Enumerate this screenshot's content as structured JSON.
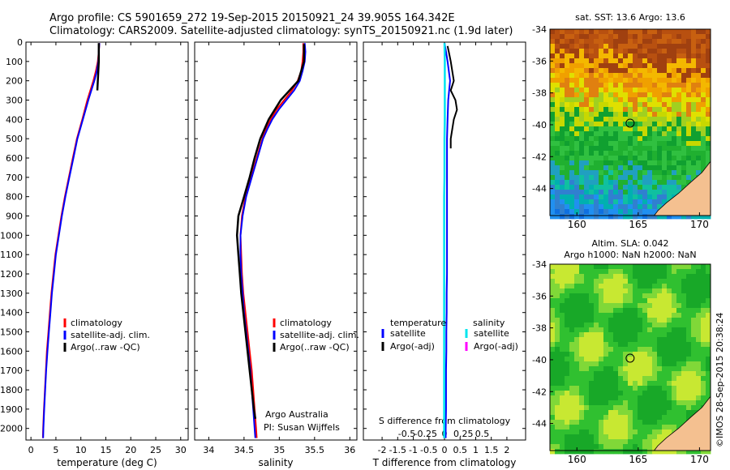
{
  "title_line1": "Argo profile: CS 5901659_272 19-Sep-2015 20150921_24 39.905S 164.342E",
  "title_line2": "Climatology: CARS2009. Satellite-adjusted climatology: synTS_20150921.nc (1.9d later)",
  "colors": {
    "climatology": "#ff0000",
    "satellite": "#0000ff",
    "argo": "#000000",
    "sat_salinity": "#00e5ee",
    "argo_salinity": "#ff00ff",
    "land": "#f4c090"
  },
  "depth_axis": {
    "ticks": [
      "0",
      "100",
      "200",
      "300",
      "400",
      "500",
      "600",
      "700",
      "800",
      "900",
      "1000",
      "1100",
      "1200",
      "1300",
      "1400",
      "1500",
      "1600",
      "1700",
      "1800",
      "1900",
      "2000"
    ],
    "range": [
      0,
      2060
    ]
  },
  "annotation": {
    "line1": "Argo Australia",
    "line2": "PI: Susan Wijffels"
  },
  "sst_title": "sat. SST: 13.6  Argo: 13.6",
  "sla_title1": "Altim. SLA: 0.042",
  "sla_title2": "Argo h1000: NaN h2000: NaN",
  "credit": "©IMOS 28-Sep-2015 20:38:24",
  "chart_data": [
    {
      "type": "line",
      "xlabel": "temperature (deg C)",
      "xticks": [
        "0",
        "5",
        "10",
        "15",
        "20",
        "25",
        "30"
      ],
      "xlim": [
        -1,
        31.5
      ],
      "ylim": [
        0,
        2060
      ],
      "legend": [
        "climatology",
        "satellite-adj. clim.",
        "Argo(..raw -QC)"
      ],
      "legend_position": "bottom-right",
      "series": [
        {
          "name": "climatology",
          "depth": [
            5,
            50,
            100,
            150,
            200,
            300,
            400,
            500,
            600,
            700,
            800,
            900,
            1000,
            1100,
            1200,
            1300,
            1400,
            1500,
            1600,
            1700,
            1800,
            1900,
            2000,
            2050
          ],
          "values": [
            13.7,
            13.6,
            13.4,
            13.0,
            12.5,
            11.3,
            10.3,
            9.2,
            8.4,
            7.6,
            6.8,
            6.1,
            5.5,
            4.9,
            4.5,
            4.1,
            3.8,
            3.5,
            3.2,
            3.0,
            2.8,
            2.6,
            2.45,
            2.4
          ]
        },
        {
          "name": "satellite-adj. clim.",
          "depth": [
            5,
            50,
            100,
            150,
            200,
            300,
            400,
            500,
            600,
            700,
            800,
            900,
            1000,
            1100,
            1200,
            1300,
            1400,
            1500,
            1600,
            1700,
            1800,
            1900,
            2000,
            2050
          ],
          "values": [
            13.7,
            13.6,
            13.5,
            13.2,
            12.7,
            11.5,
            10.4,
            9.3,
            8.5,
            7.7,
            6.9,
            6.2,
            5.6,
            5.0,
            4.6,
            4.2,
            3.9,
            3.6,
            3.3,
            3.05,
            2.85,
            2.65,
            2.5,
            2.45
          ]
        },
        {
          "name": "Argo(..raw -QC)",
          "depth": [
            5,
            50,
            100,
            150,
            200,
            250
          ],
          "values": [
            13.6,
            13.6,
            13.6,
            13.5,
            13.4,
            13.3
          ]
        }
      ]
    },
    {
      "type": "line",
      "xlabel": "salinity",
      "xticks": [
        "34",
        "34.5",
        "35",
        "35.5",
        "36"
      ],
      "xlim": [
        33.8,
        36.1
      ],
      "ylim": [
        0,
        2060
      ],
      "legend": [
        "climatology",
        "satellite-adj. clim.",
        "Argo(..raw -QC)"
      ],
      "legend_position": "bottom-right",
      "series": [
        {
          "name": "climatology",
          "depth": [
            5,
            50,
            100,
            150,
            200,
            250,
            300,
            350,
            400,
            450,
            500,
            600,
            700,
            800,
            900,
            1000,
            1100,
            1200,
            1300,
            1400,
            1500,
            1600,
            1700,
            1800,
            1900,
            2000,
            2050
          ],
          "values": [
            35.34,
            35.34,
            35.33,
            35.31,
            35.26,
            35.18,
            35.07,
            34.96,
            34.88,
            34.81,
            34.76,
            34.68,
            34.6,
            34.52,
            34.47,
            34.45,
            34.46,
            34.47,
            34.49,
            34.52,
            34.55,
            34.58,
            34.61,
            34.63,
            34.65,
            34.67,
            34.68
          ]
        },
        {
          "name": "satellite-adj. clim.",
          "depth": [
            5,
            50,
            100,
            150,
            200,
            250,
            300,
            350,
            400,
            450,
            500,
            600,
            700,
            800,
            900,
            1000,
            1100,
            1200,
            1300,
            1400,
            1500,
            1600,
            1700,
            1800,
            1900,
            2000,
            2050
          ],
          "values": [
            35.36,
            35.37,
            35.36,
            35.33,
            35.29,
            35.21,
            35.1,
            34.99,
            34.9,
            34.83,
            34.77,
            34.69,
            34.61,
            34.53,
            34.48,
            34.45,
            34.45,
            34.46,
            34.48,
            34.5,
            34.53,
            34.56,
            34.59,
            34.61,
            34.63,
            34.65,
            34.66
          ]
        },
        {
          "name": "Argo(..raw -QC)",
          "depth": [
            10,
            100,
            200,
            300,
            400,
            500,
            600,
            700,
            800,
            900,
            1000,
            1100,
            1200,
            1300,
            1400,
            1500,
            1600,
            1700,
            1800,
            1900,
            1950
          ],
          "values": [
            35.35,
            35.35,
            35.27,
            35.02,
            34.85,
            34.73,
            34.65,
            34.58,
            34.5,
            34.42,
            34.4,
            34.42,
            34.44,
            34.46,
            34.49,
            34.52,
            34.55,
            34.58,
            34.61,
            34.64,
            34.66
          ]
        }
      ]
    },
    {
      "type": "line",
      "xlabel": "T difference from climatology",
      "xticks": [
        "-2",
        "-1.5",
        "-1",
        "-0.5",
        "0",
        "0.5",
        "1",
        "1.5",
        "2"
      ],
      "xlim": [
        -2.6,
        2.6
      ],
      "x2label": "S difference from climatology",
      "x2ticks": [
        "-0.5",
        "-0.25",
        "0",
        "0.25",
        "0.5"
      ],
      "ylim": [
        0,
        2060
      ],
      "legend_temperature_title": "temperature",
      "legend_salinity_title": "salinity",
      "legend": [
        "satellite",
        "Argo(-adj)",
        "satellite",
        "Argo(-adj)"
      ],
      "legend_position": "bottom",
      "series": [
        {
          "name": "satellite",
          "depth": [
            5,
            50,
            100,
            200,
            300,
            400,
            500,
            600,
            700,
            800,
            900,
            1000,
            1100,
            1200,
            1300,
            1400,
            1500,
            1600,
            1700,
            1800,
            1900,
            2000,
            2050
          ],
          "values": [
            0.0,
            0.05,
            0.1,
            0.18,
            0.12,
            0.1,
            0.08,
            0.08,
            0.08,
            0.08,
            0.08,
            0.08,
            0.08,
            0.08,
            0.07,
            0.07,
            0.06,
            0.06,
            0.05,
            0.05,
            0.05,
            0.04,
            0.04
          ]
        },
        {
          "name": "Argo(-adj)",
          "depth": [
            20,
            60,
            100,
            150,
            200,
            250,
            300,
            350,
            400,
            450,
            500,
            550
          ],
          "values": [
            0.1,
            0.15,
            0.2,
            0.25,
            0.3,
            0.2,
            0.35,
            0.4,
            0.3,
            0.25,
            0.2,
            0.2
          ]
        },
        {
          "name": "satellite",
          "depth": [
            5,
            100,
            200,
            300,
            400,
            500,
            600,
            700,
            800,
            900,
            1000,
            1100,
            1200,
            1300,
            1400,
            1500,
            1600,
            1700,
            1800,
            1900,
            2000,
            2050
          ],
          "values": [
            0.0,
            0.01,
            0.01,
            0.01,
            0.01,
            0.0,
            0.0,
            0.0,
            -0.01,
            -0.01,
            -0.01,
            -0.01,
            -0.01,
            -0.01,
            -0.01,
            -0.01,
            -0.01,
            -0.01,
            -0.01,
            -0.01,
            -0.01,
            -0.01
          ]
        }
      ]
    },
    {
      "type": "heatmap",
      "title": "sat. SST: 13.6  Argo: 13.6",
      "xticks": [
        "160",
        "165",
        "170"
      ],
      "yticks": [
        "-34",
        "-36",
        "-38",
        "-40",
        "-42",
        "-44"
      ],
      "xlim": [
        157.8,
        170.9
      ],
      "ylim": [
        -45.7,
        -34
      ],
      "marker": {
        "lon": 164.34,
        "lat": -39.9
      }
    },
    {
      "type": "heatmap",
      "title": "Altim. SLA: 0.042",
      "xticks": [
        "160",
        "165",
        "170"
      ],
      "yticks": [
        "-34",
        "-36",
        "-38",
        "-40",
        "-42",
        "-44"
      ],
      "xlim": [
        157.8,
        170.9
      ],
      "ylim": [
        -45.7,
        -34
      ],
      "marker": {
        "lon": 164.34,
        "lat": -39.9
      }
    }
  ]
}
